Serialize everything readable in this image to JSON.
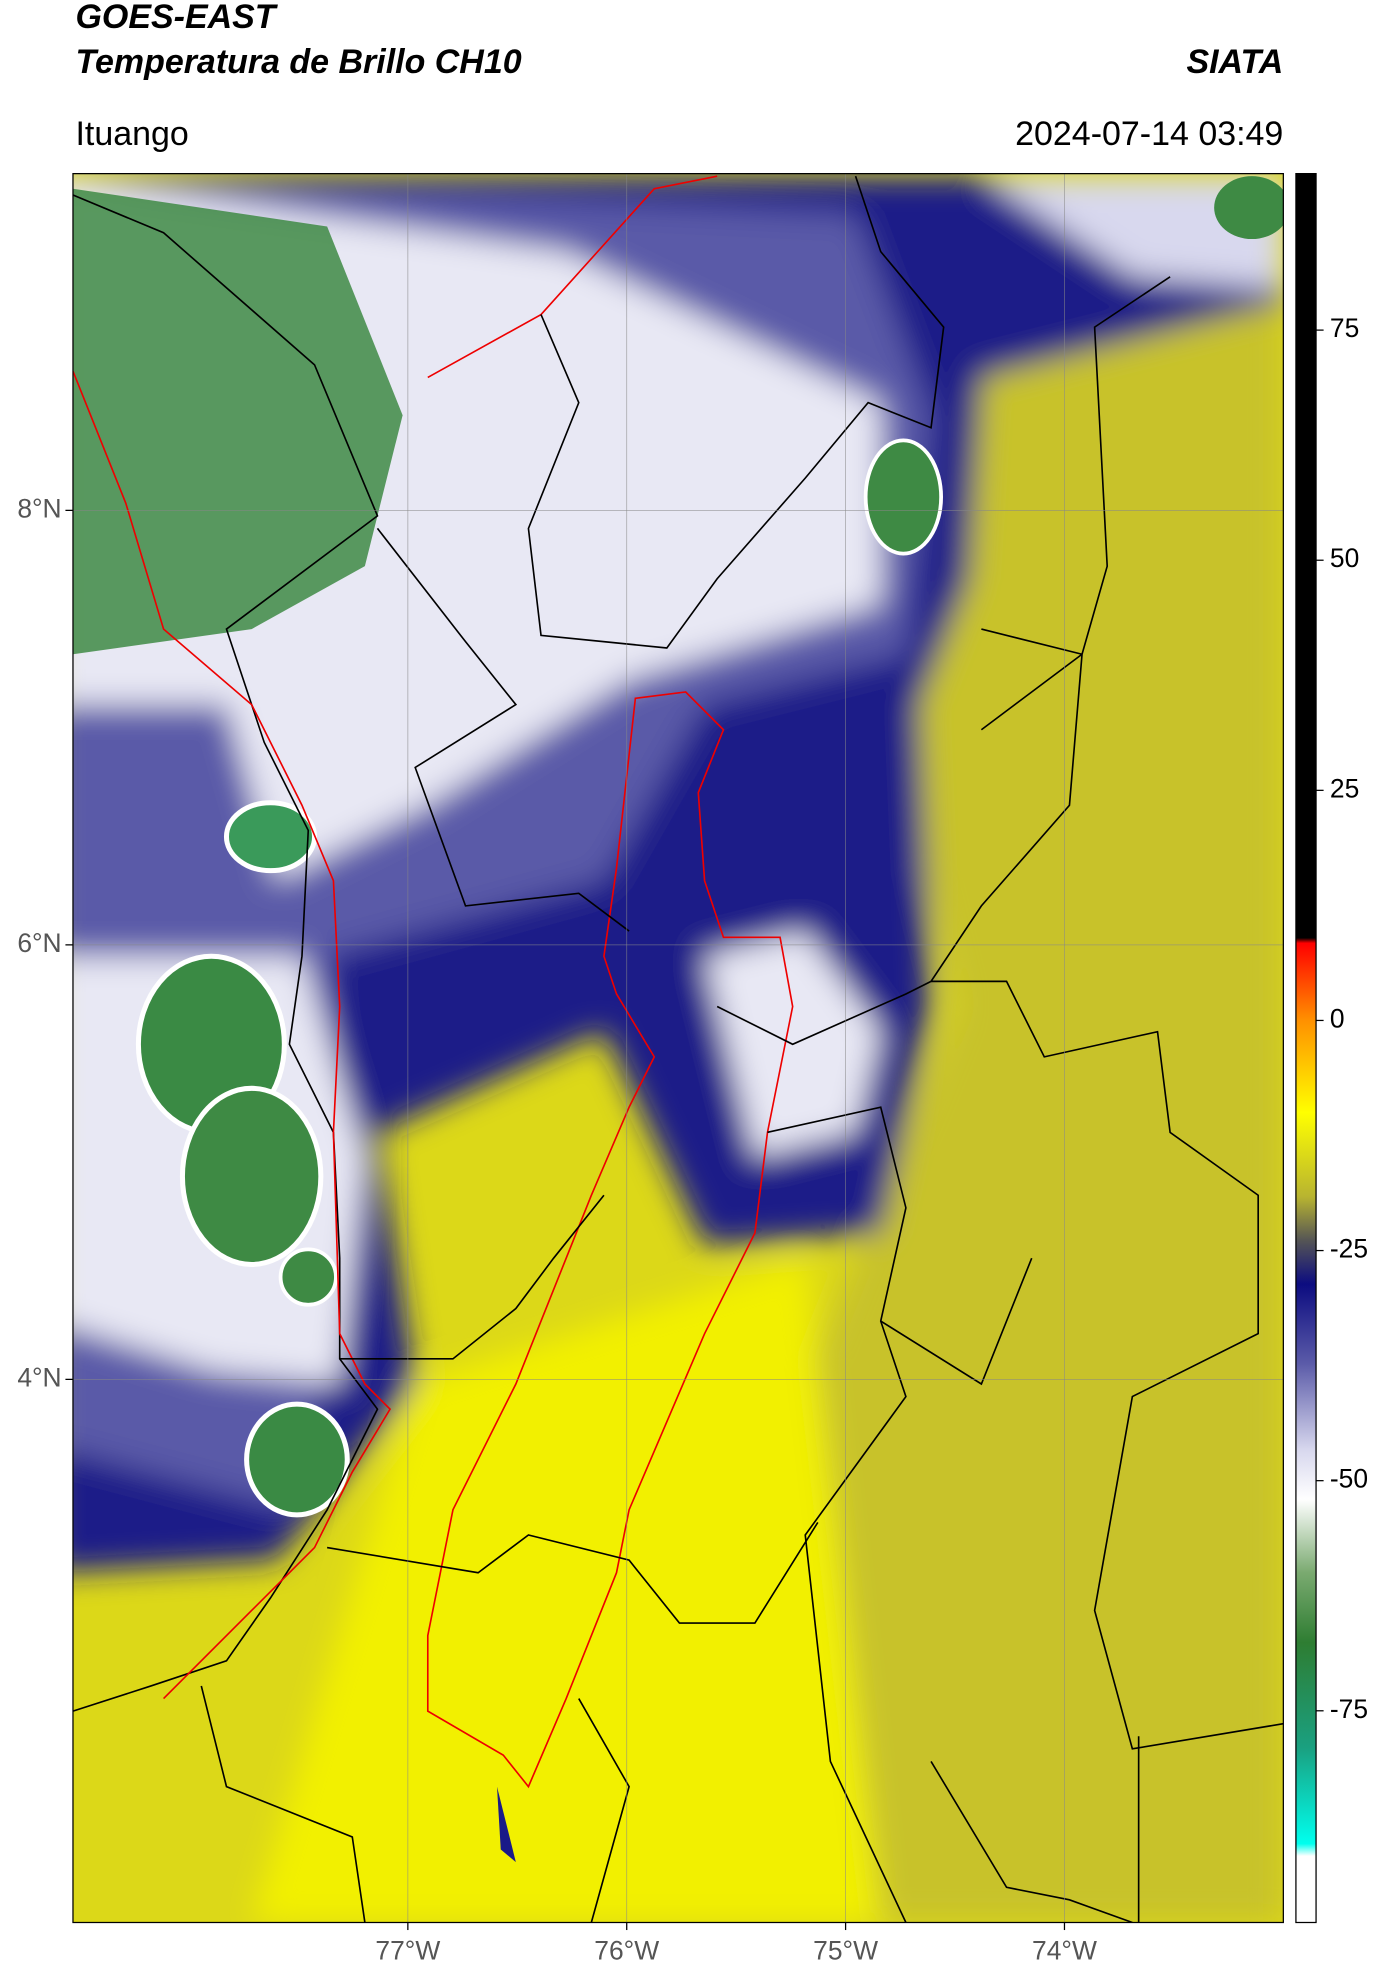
{
  "chart_data": {
    "type": "map",
    "title": "GOES-EAST",
    "subtitle": "Temperatura de Brillo CH10",
    "source": "SIATA",
    "location": "Ituango",
    "datetime": "2024-07-14 03:49",
    "xlim": [
      -78.53,
      -73.0
    ],
    "ylim": [
      1.5,
      9.55
    ],
    "xticks": [
      {
        "value": -77,
        "label": "77°W"
      },
      {
        "value": -76,
        "label": "76°W"
      },
      {
        "value": -75,
        "label": "75°W"
      },
      {
        "value": -74,
        "label": "74°W"
      }
    ],
    "yticks": [
      {
        "value": 8,
        "label": "8°N"
      },
      {
        "value": 6,
        "label": "6°N"
      },
      {
        "value": 4,
        "label": "4°N"
      }
    ],
    "grid": true,
    "colorbar": {
      "lim": [
        -98,
        92
      ],
      "ticks": [
        75,
        50,
        25,
        0,
        -25,
        -50,
        -75
      ]
    }
  }
}
